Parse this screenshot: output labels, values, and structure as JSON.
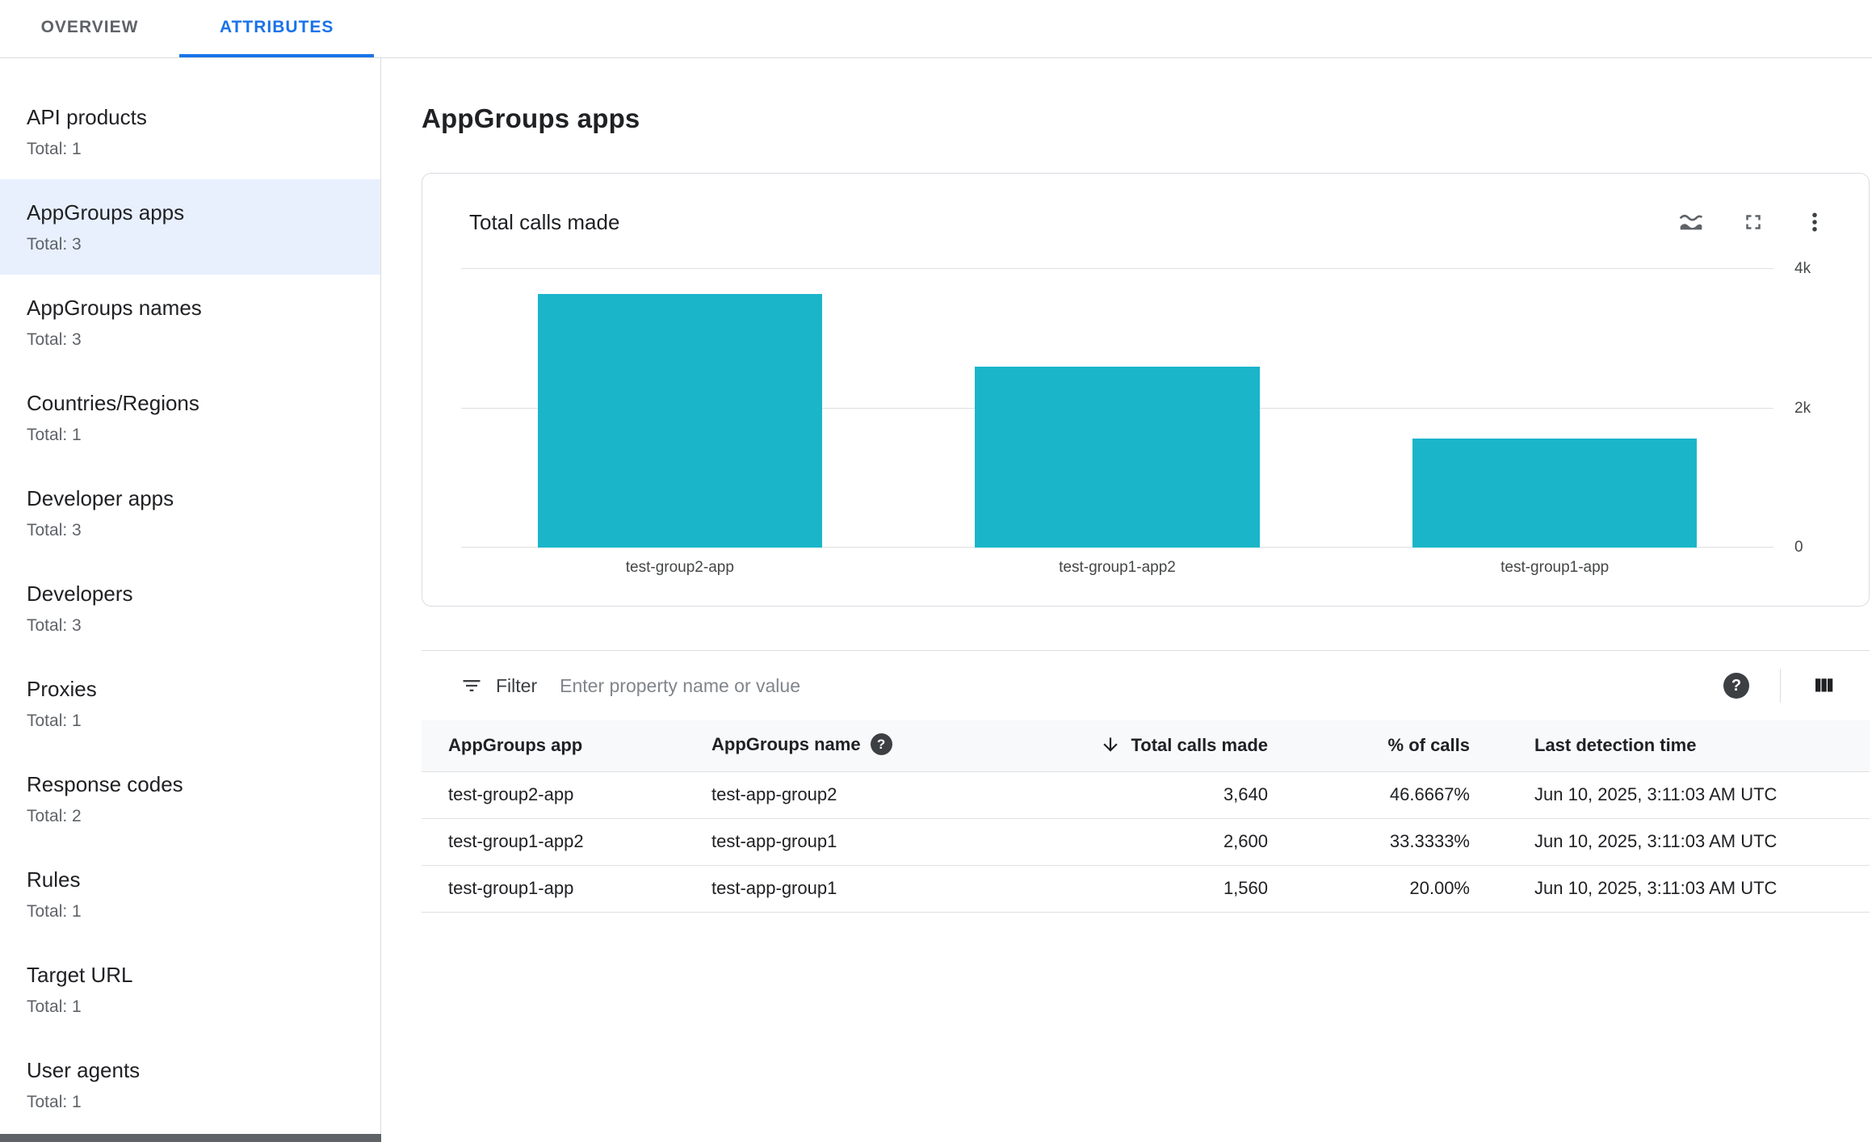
{
  "tabs": [
    {
      "label": "OVERVIEW",
      "active": false
    },
    {
      "label": "ATTRIBUTES",
      "active": true
    }
  ],
  "page": {
    "title": "AppGroups apps"
  },
  "sidebar": {
    "items": [
      {
        "label": "API products",
        "total": "Total: 1",
        "selected": false
      },
      {
        "label": "AppGroups apps",
        "total": "Total: 3",
        "selected": true
      },
      {
        "label": "AppGroups names",
        "total": "Total: 3",
        "selected": false
      },
      {
        "label": "Countries/Regions",
        "total": "Total: 1",
        "selected": false
      },
      {
        "label": "Developer apps",
        "total": "Total: 3",
        "selected": false
      },
      {
        "label": "Developers",
        "total": "Total: 3",
        "selected": false
      },
      {
        "label": "Proxies",
        "total": "Total: 1",
        "selected": false
      },
      {
        "label": "Response codes",
        "total": "Total: 2",
        "selected": false
      },
      {
        "label": "Rules",
        "total": "Total: 1",
        "selected": false
      },
      {
        "label": "Target URL",
        "total": "Total: 1",
        "selected": false
      },
      {
        "label": "User agents",
        "total": "Total: 1",
        "selected": false
      }
    ]
  },
  "chart_data": {
    "type": "bar",
    "title": "Total calls made",
    "categories": [
      "test-group2-app",
      "test-group1-app2",
      "test-group1-app"
    ],
    "values": [
      3640,
      2600,
      1560
    ],
    "ylim": [
      0,
      4000
    ],
    "yticks": [
      {
        "value": 0,
        "label": "0"
      },
      {
        "value": 2000,
        "label": "2k"
      },
      {
        "value": 4000,
        "label": "4k"
      }
    ],
    "bar_color": "#1ab5c9",
    "grid": true,
    "legend": false,
    "xlabel": "",
    "ylabel": ""
  },
  "filter": {
    "label": "Filter",
    "placeholder": "Enter property name or value"
  },
  "table": {
    "columns": [
      {
        "label": "AppGroups app",
        "align": "left"
      },
      {
        "label": "AppGroups name",
        "align": "left",
        "help": true
      },
      {
        "label": "Total calls made",
        "align": "right",
        "sorted": "desc"
      },
      {
        "label": "% of calls",
        "align": "right"
      },
      {
        "label": "Last detection time",
        "align": "left"
      }
    ],
    "rows": [
      [
        "test-group2-app",
        "test-app-group2",
        "3,640",
        "46.6667%",
        "Jun 10, 2025, 3:11:03 AM UTC"
      ],
      [
        "test-group1-app2",
        "test-app-group1",
        "2,600",
        "33.3333%",
        "Jun 10, 2025, 3:11:03 AM UTC"
      ],
      [
        "test-group1-app",
        "test-app-group1",
        "1,560",
        "20.00%",
        "Jun 10, 2025, 3:11:03 AM UTC"
      ]
    ]
  },
  "icons": {
    "chart_actions": [
      "area-chart-icon",
      "fullscreen-icon",
      "more-vert-icon"
    ],
    "filter": "filter-list-icon",
    "help": "help-icon",
    "columns": "view-columns-icon",
    "sort": "arrow-downward-icon"
  },
  "colors": {
    "accent": "#1a73e8",
    "bar": "#1ab5c9",
    "selected_bg": "#e8f0fe",
    "text": "#202124",
    "secondary_text": "#5f6368",
    "border": "#dadce0"
  }
}
